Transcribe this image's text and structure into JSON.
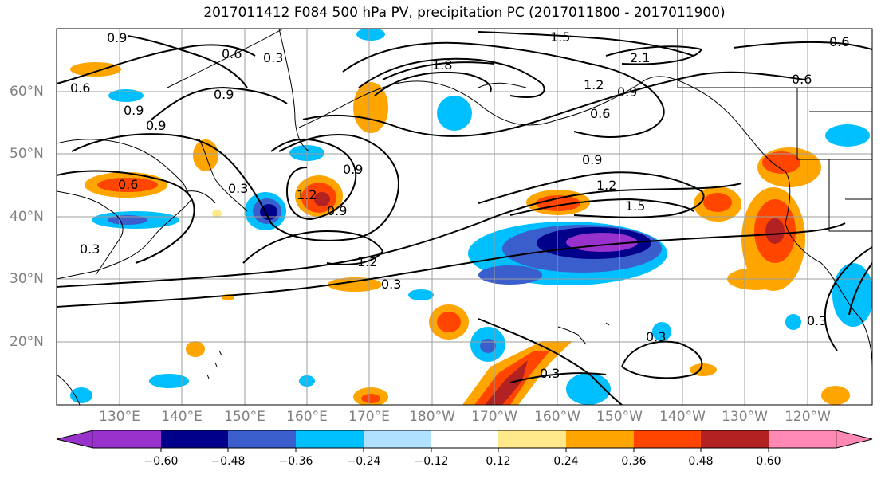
{
  "title": "2017011412 F084 500 hPa PV, precipitation PC (2017011800 - 2017011900)",
  "lon_labels": [
    "130°E",
    "140°E",
    "150°E",
    "160°E",
    "170°E",
    "180°W",
    "170°W",
    "160°W",
    "150°W",
    "140°W",
    "130°W",
    "120°W"
  ],
  "lat_labels": [
    "60°N",
    "50°N",
    "40°N",
    "30°N",
    "20°N"
  ],
  "colorbar": {
    "ticks": [
      "−0.60",
      "−0.48",
      "−0.36",
      "−0.24",
      "−0.12",
      "0.12",
      "0.24",
      "0.36",
      "0.48",
      "0.60"
    ],
    "colors": [
      "#9932cc",
      "#00008b",
      "#3a5fcd",
      "#00bfff",
      "#b0e2ff",
      "#ffffff",
      "#ffe98a",
      "#ffa500",
      "#ff4500",
      "#b22222",
      "#ff88b4"
    ]
  },
  "contour_labels": [
    "0.9",
    "0.6",
    "0.3",
    "0.6",
    "0.9",
    "0.9",
    "0.9",
    "0.6",
    "0.3",
    "1.2",
    "0.9",
    "0.9",
    "1.8",
    "1.5",
    "2.1",
    "1.2",
    "0.9",
    "0.6",
    "0.6",
    "0.6",
    "0.9",
    "1.2",
    "1.5",
    "1.2",
    "0.3",
    "0.3",
    "0.3",
    "0.3",
    "0.3"
  ],
  "legend_colors": {
    "contour": "#000000",
    "coast": "#000000",
    "grid": "#9e9e9e"
  }
}
